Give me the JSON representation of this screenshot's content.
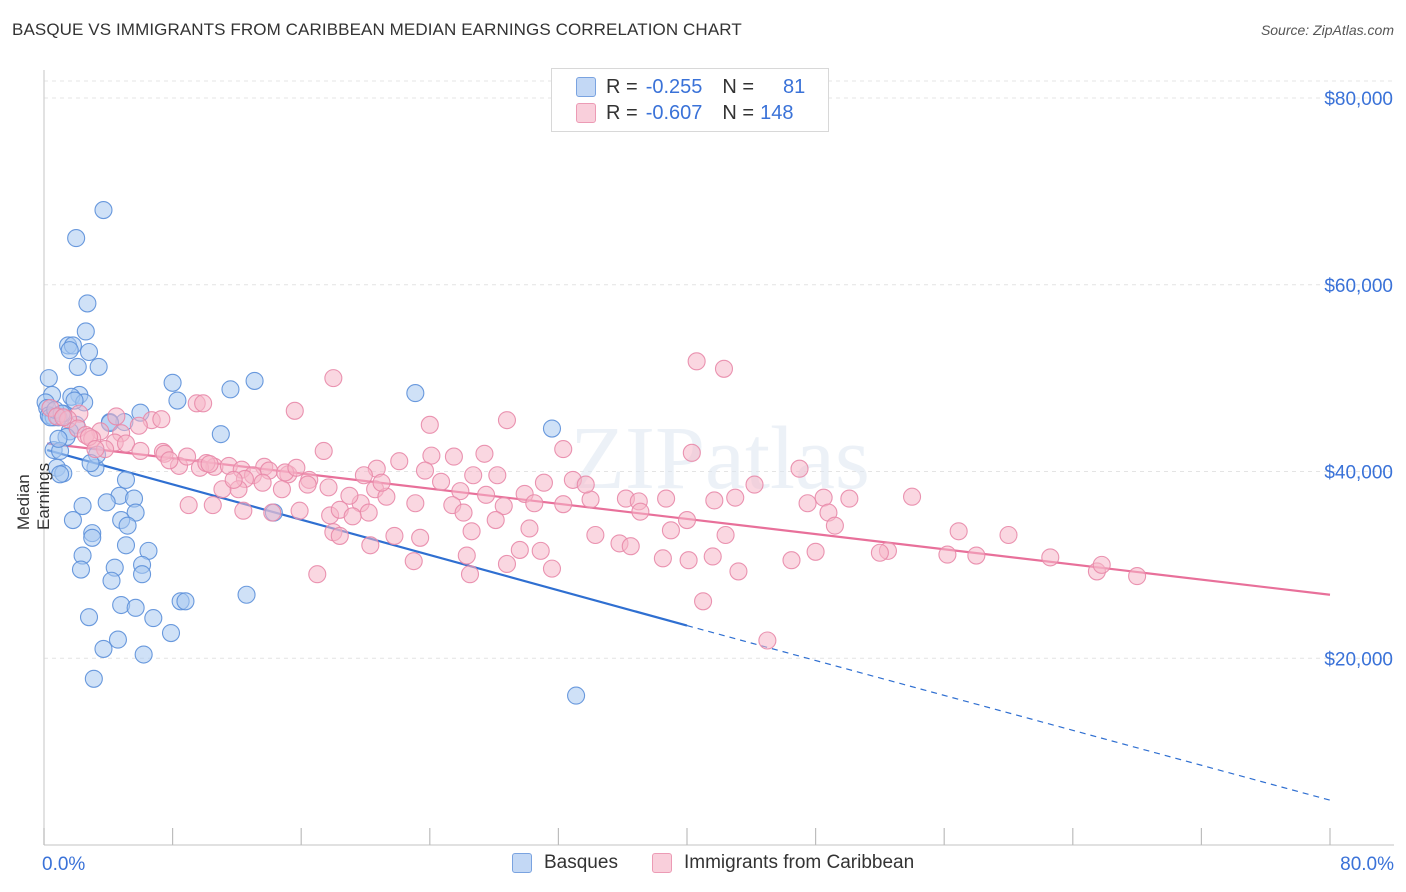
{
  "title": "BASQUE VS IMMIGRANTS FROM CARIBBEAN MEDIAN EARNINGS CORRELATION CHART",
  "source": "Source: ZipAtlas.com",
  "watermark": "ZIPatlas",
  "legend_top": {
    "rows": [
      {
        "r_label": "R =",
        "r_value": "-0.255",
        "n_label": "N =",
        "n_value": "81",
        "color": "#a8c8f0"
      },
      {
        "r_label": "R =",
        "r_value": "-0.607",
        "n_label": "N =",
        "n_value": "148",
        "color": "#f5b7c8"
      }
    ]
  },
  "legend_bottom": [
    {
      "label": "Basques",
      "color": "#a8c8f0"
    },
    {
      "label": "Immigrants from Caribbean",
      "color": "#f5b7c8"
    }
  ],
  "chart_data": {
    "type": "scatter",
    "xlabel": "",
    "ylabel": "Median Earnings",
    "xlim": [
      0,
      80
    ],
    "ylim": [
      0,
      83000
    ],
    "x_tick_labels": [
      {
        "value": 0,
        "label": "0.0%"
      },
      {
        "value": 80,
        "label": "80.0%"
      }
    ],
    "y_tick_labels": [
      {
        "value": 20000,
        "label": "$20,000"
      },
      {
        "value": 40000,
        "label": "$40,000"
      },
      {
        "value": 60000,
        "label": "$60,000"
      },
      {
        "value": 80000,
        "label": "$80,000"
      }
    ],
    "grid": true,
    "legend_position": "top-center",
    "series": [
      {
        "name": "Basques",
        "color": "#5b8fd9",
        "fill": "#a8c8f0",
        "line_color": "#2f6fd1",
        "trend": {
          "x0": 0.2,
          "y0": 42300,
          "x1": 40,
          "y1": 23500,
          "x_dash_end": 80,
          "y_dash_end": 4800
        },
        "points": [
          [
            3.7,
            68000
          ],
          [
            2.0,
            65000
          ],
          [
            2.7,
            58000
          ],
          [
            2.6,
            55000
          ],
          [
            1.5,
            53500
          ],
          [
            1.8,
            53500
          ],
          [
            1.6,
            53000
          ],
          [
            2.8,
            52800
          ],
          [
            2.1,
            51200
          ],
          [
            3.4,
            51200
          ],
          [
            0.3,
            50000
          ],
          [
            8.0,
            49500
          ],
          [
            13.1,
            49700
          ],
          [
            11.6,
            48800
          ],
          [
            23.1,
            48400
          ],
          [
            0.5,
            48200
          ],
          [
            2.2,
            48200
          ],
          [
            1.7,
            48000
          ],
          [
            0.1,
            47400
          ],
          [
            8.3,
            47600
          ],
          [
            2.5,
            47400
          ],
          [
            0.2,
            46800
          ],
          [
            6.0,
            46300
          ],
          [
            1.2,
            46200
          ],
          [
            0.3,
            46000
          ],
          [
            0.6,
            45800
          ],
          [
            4.1,
            45300
          ],
          [
            5.0,
            45300
          ],
          [
            0.9,
            45800
          ],
          [
            2.0,
            45000
          ],
          [
            1.6,
            44300
          ],
          [
            11.0,
            44000
          ],
          [
            31.6,
            44600
          ],
          [
            1.4,
            43700
          ],
          [
            0.6,
            42300
          ],
          [
            1.0,
            42200
          ],
          [
            3.2,
            40400
          ],
          [
            0.8,
            40400
          ],
          [
            1.2,
            39800
          ],
          [
            1.0,
            39700
          ],
          [
            5.1,
            39100
          ],
          [
            4.7,
            37400
          ],
          [
            5.6,
            37100
          ],
          [
            3.9,
            36700
          ],
          [
            2.4,
            36300
          ],
          [
            5.7,
            35600
          ],
          [
            14.3,
            35600
          ],
          [
            1.8,
            34800
          ],
          [
            4.8,
            34800
          ],
          [
            5.2,
            34200
          ],
          [
            3.0,
            33400
          ],
          [
            3.0,
            32900
          ],
          [
            5.1,
            32100
          ],
          [
            6.5,
            31500
          ],
          [
            2.4,
            31000
          ],
          [
            6.1,
            30000
          ],
          [
            4.4,
            29700
          ],
          [
            2.3,
            29500
          ],
          [
            6.1,
            29000
          ],
          [
            4.2,
            28300
          ],
          [
            12.6,
            26800
          ],
          [
            8.5,
            26100
          ],
          [
            8.8,
            26100
          ],
          [
            4.8,
            25700
          ],
          [
            5.7,
            25400
          ],
          [
            2.8,
            24400
          ],
          [
            6.8,
            24300
          ],
          [
            7.9,
            22700
          ],
          [
            4.6,
            22000
          ],
          [
            3.7,
            21000
          ],
          [
            6.2,
            20400
          ],
          [
            3.1,
            17800
          ],
          [
            33.1,
            16000
          ],
          [
            0.4,
            45800
          ],
          [
            0.7,
            46600
          ],
          [
            1.1,
            46200
          ],
          [
            0.9,
            43500
          ],
          [
            4.1,
            45200
          ],
          [
            3.3,
            41800
          ],
          [
            2.9,
            40900
          ],
          [
            1.9,
            47600
          ]
        ]
      },
      {
        "name": "Immigrants from Caribbean",
        "color": "#e888a8",
        "fill": "#f5b7c8",
        "line_color": "#e8709a",
        "trend": {
          "x0": 0.2,
          "y0": 43000,
          "x1": 80,
          "y1": 26800
        },
        "points": [
          [
            40.6,
            51800
          ],
          [
            42.3,
            51000
          ],
          [
            18.0,
            50000
          ],
          [
            9.5,
            47300
          ],
          [
            9.9,
            47300
          ],
          [
            15.6,
            46500
          ],
          [
            0.4,
            46800
          ],
          [
            2.2,
            46200
          ],
          [
            0.8,
            45900
          ],
          [
            1.5,
            45600
          ],
          [
            4.5,
            45900
          ],
          [
            6.7,
            45500
          ],
          [
            24.0,
            45000
          ],
          [
            28.8,
            45500
          ],
          [
            5.9,
            44900
          ],
          [
            2.1,
            44600
          ],
          [
            3.5,
            44300
          ],
          [
            2.6,
            43900
          ],
          [
            4.8,
            44100
          ],
          [
            3.0,
            43500
          ],
          [
            4.4,
            43100
          ],
          [
            5.1,
            43000
          ],
          [
            3.8,
            42400
          ],
          [
            6.0,
            42200
          ],
          [
            7.4,
            42100
          ],
          [
            7.5,
            41900
          ],
          [
            17.4,
            42200
          ],
          [
            24.1,
            41700
          ],
          [
            25.5,
            41600
          ],
          [
            27.4,
            41900
          ],
          [
            32.3,
            42400
          ],
          [
            40.3,
            42000
          ],
          [
            22.1,
            41100
          ],
          [
            10.6,
            40500
          ],
          [
            8.4,
            40600
          ],
          [
            7.8,
            41200
          ],
          [
            9.7,
            40400
          ],
          [
            10.1,
            40900
          ],
          [
            11.5,
            40600
          ],
          [
            12.3,
            40200
          ],
          [
            13.7,
            40500
          ],
          [
            14.0,
            40100
          ],
          [
            15.2,
            39700
          ],
          [
            15.0,
            39900
          ],
          [
            13.0,
            39600
          ],
          [
            20.7,
            40300
          ],
          [
            19.9,
            39600
          ],
          [
            23.7,
            40100
          ],
          [
            26.7,
            39600
          ],
          [
            28.2,
            39600
          ],
          [
            32.9,
            39100
          ],
          [
            31.1,
            38800
          ],
          [
            47.0,
            40300
          ],
          [
            12.5,
            39200
          ],
          [
            13.6,
            38800
          ],
          [
            16.5,
            39100
          ],
          [
            17.7,
            38300
          ],
          [
            20.6,
            38100
          ],
          [
            25.9,
            37900
          ],
          [
            29.9,
            37600
          ],
          [
            12.1,
            38100
          ],
          [
            11.1,
            38100
          ],
          [
            14.8,
            38100
          ],
          [
            16.4,
            38600
          ],
          [
            17.8,
            35300
          ],
          [
            18.4,
            35900
          ],
          [
            19.7,
            36600
          ],
          [
            20.2,
            35600
          ],
          [
            21.3,
            37300
          ],
          [
            23.1,
            36600
          ],
          [
            25.4,
            36400
          ],
          [
            26.1,
            35600
          ],
          [
            28.6,
            36300
          ],
          [
            30.5,
            36600
          ],
          [
            32.3,
            36500
          ],
          [
            34.0,
            37000
          ],
          [
            36.2,
            37100
          ],
          [
            37.0,
            36800
          ],
          [
            38.7,
            37100
          ],
          [
            43.0,
            37200
          ],
          [
            41.7,
            36900
          ],
          [
            47.5,
            36600
          ],
          [
            48.5,
            37200
          ],
          [
            50.1,
            37100
          ],
          [
            54.0,
            37300
          ],
          [
            9.0,
            36400
          ],
          [
            10.5,
            36400
          ],
          [
            12.4,
            35800
          ],
          [
            14.2,
            35600
          ],
          [
            15.9,
            35800
          ],
          [
            18.0,
            33500
          ],
          [
            18.4,
            33100
          ],
          [
            19.2,
            35200
          ],
          [
            21.8,
            33100
          ],
          [
            23.4,
            32900
          ],
          [
            26.6,
            33600
          ],
          [
            28.1,
            34800
          ],
          [
            30.2,
            33900
          ],
          [
            34.3,
            33200
          ],
          [
            35.8,
            32300
          ],
          [
            37.1,
            35700
          ],
          [
            39.0,
            33700
          ],
          [
            40.0,
            34800
          ],
          [
            42.4,
            33200
          ],
          [
            48.8,
            35600
          ],
          [
            49.2,
            34200
          ],
          [
            52.5,
            31500
          ],
          [
            52.0,
            31300
          ],
          [
            56.9,
            33600
          ],
          [
            56.2,
            31100
          ],
          [
            58.0,
            31000
          ],
          [
            60.0,
            33200
          ],
          [
            20.3,
            32100
          ],
          [
            23.0,
            30400
          ],
          [
            26.3,
            31000
          ],
          [
            28.8,
            30100
          ],
          [
            29.6,
            31600
          ],
          [
            30.9,
            31500
          ],
          [
            31.6,
            29600
          ],
          [
            36.5,
            32000
          ],
          [
            38.5,
            30700
          ],
          [
            40.1,
            30500
          ],
          [
            41.6,
            30900
          ],
          [
            43.2,
            29300
          ],
          [
            46.5,
            30500
          ],
          [
            48.0,
            31400
          ],
          [
            62.6,
            30800
          ],
          [
            65.5,
            29300
          ],
          [
            65.8,
            30000
          ],
          [
            68.0,
            28800
          ],
          [
            17.0,
            29000
          ],
          [
            26.5,
            29000
          ],
          [
            41.0,
            26100
          ],
          [
            45.0,
            21900
          ],
          [
            1.2,
            45800
          ],
          [
            2.8,
            43700
          ],
          [
            3.2,
            42400
          ],
          [
            7.3,
            45600
          ],
          [
            8.9,
            41600
          ],
          [
            10.3,
            40800
          ],
          [
            11.8,
            39100
          ],
          [
            15.7,
            40400
          ],
          [
            19.0,
            37400
          ],
          [
            21.0,
            38800
          ],
          [
            24.7,
            38900
          ],
          [
            27.5,
            37500
          ],
          [
            33.7,
            38600
          ],
          [
            44.2,
            38600
          ]
        ]
      }
    ]
  }
}
